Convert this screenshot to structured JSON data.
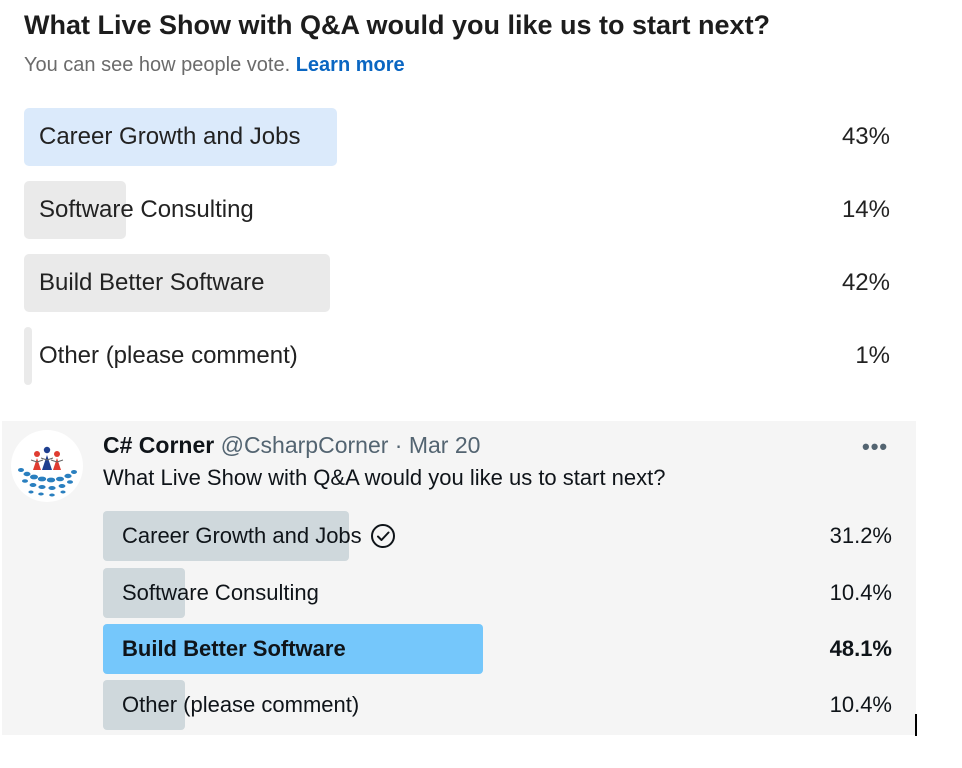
{
  "linkedin": {
    "title": "What Live Show with Q&A would you like us to start next?",
    "subtitle": "You can see how people vote.",
    "learn_more": "Learn more",
    "options": [
      {
        "label": "Career Growth and Jobs",
        "percent": "43%",
        "value": 43,
        "selected": true
      },
      {
        "label": "Software Consulting",
        "percent": "14%",
        "value": 14,
        "selected": false
      },
      {
        "label": "Build Better Software",
        "percent": "42%",
        "value": 42,
        "selected": false
      },
      {
        "label": "Other (please comment)",
        "percent": "1%",
        "value": 1,
        "selected": false
      }
    ],
    "colors": {
      "selected_bar": "#dbeafb",
      "bar": "#eaeaea",
      "link": "#0a66c2"
    }
  },
  "twitter": {
    "name": "C# Corner",
    "handle": "@CsharpCorner",
    "separator": "·",
    "date": "Mar 20",
    "more_icon": "more-horizontal-icon",
    "question": "What Live Show with Q&A would you like us to start next?",
    "options": [
      {
        "label": "Career Growth and Jobs",
        "percent": "31.2%",
        "value": 31.2,
        "voted": true,
        "winner": false
      },
      {
        "label": "Software Consulting",
        "percent": "10.4%",
        "value": 10.4,
        "voted": false,
        "winner": false
      },
      {
        "label": "Build Better Software",
        "percent": "48.1%",
        "value": 48.1,
        "voted": false,
        "winner": true
      },
      {
        "label": "Other (please comment)",
        "percent": "10.4%",
        "value": 10.4,
        "voted": false,
        "winner": false
      }
    ],
    "colors": {
      "winner_bar": "#75c7fb",
      "bar": "#cfd8dc",
      "card": "#f5f5f5"
    }
  }
}
